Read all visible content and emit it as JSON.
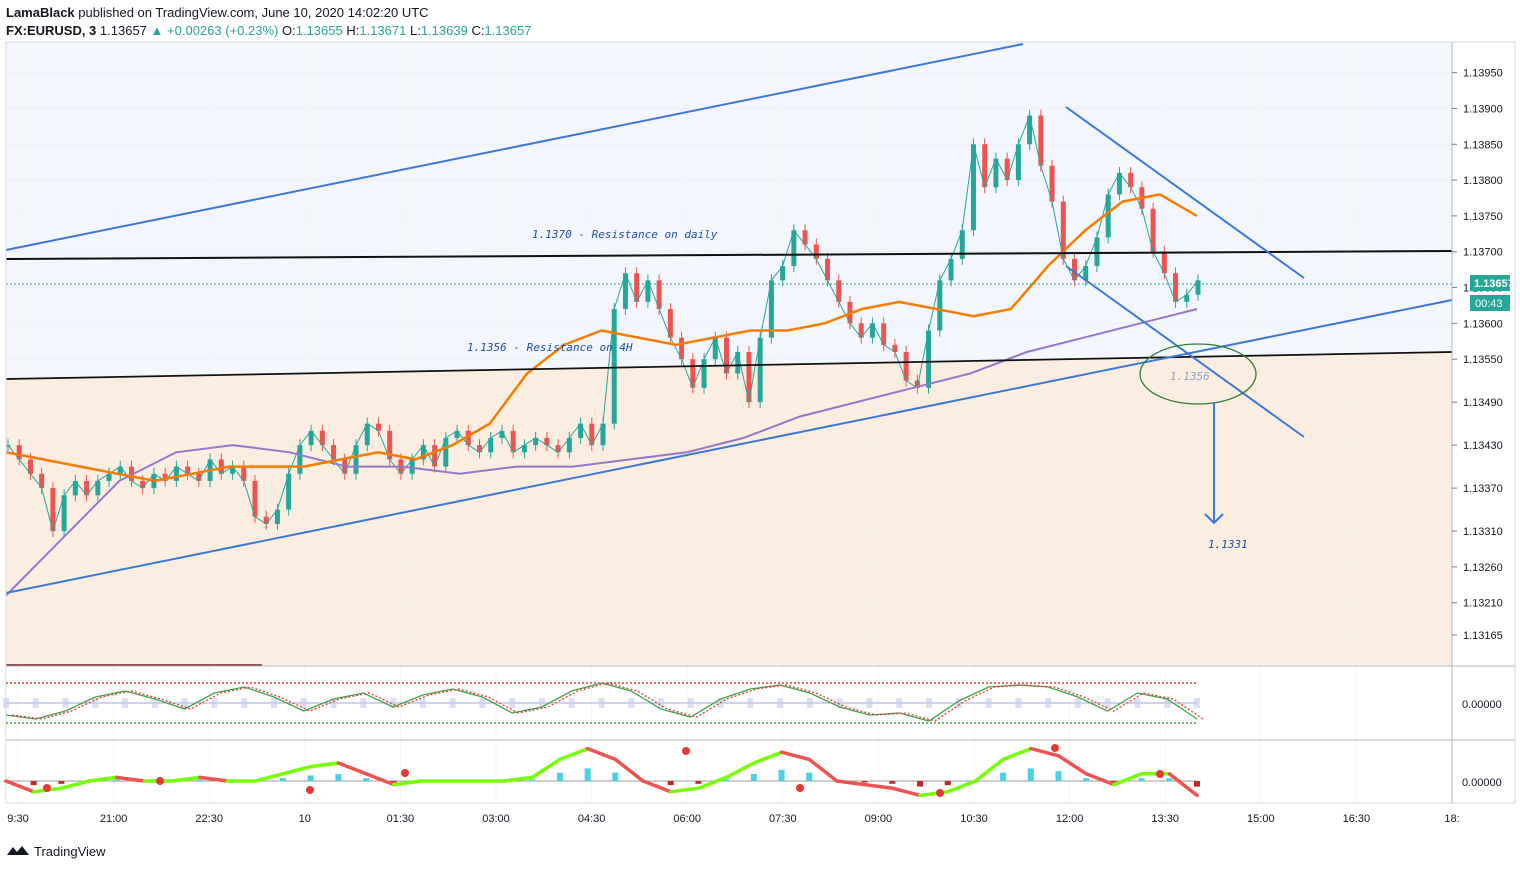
{
  "header": {
    "author": "LamaBlack",
    "published": "published on TradingView.com, June 10, 2020 14:02:20 UTC",
    "symbol": "FX:EURUSD, 3",
    "last": "1.13657",
    "change_arrow": "▲",
    "change": "+0.00263 (+0.23%)",
    "o_label": "O:",
    "o": "1.13655",
    "h_label": "H:",
    "h": "1.13671",
    "l_label": "L:",
    "l": "1.13639",
    "c_label": "C:",
    "c": "1.13657"
  },
  "footer": {
    "brand": "TradingView"
  },
  "colors": {
    "candle_up": "#26a69a",
    "candle_down": "#ef5350",
    "trend_blue": "#3a78d6",
    "resistance_black": "#111111",
    "ma_orange": "#f57c00",
    "ma_purple": "#9575cd",
    "zone_fill": "#fbeee0",
    "upper_fill": "#f3f7fd"
  },
  "chart_data": [
    {
      "type": "candlestick",
      "title": "",
      "ylim": [
        1.1313,
        1.1399
      ],
      "y_ticks": [
        "1.13950",
        "1.13900",
        "1.13850",
        "1.13800",
        "1.13750",
        "1.13700",
        "1.13650",
        "1.13600",
        "1.13550",
        "1.13490",
        "1.13430",
        "1.13370",
        "1.13310",
        "1.13260",
        "1.13210",
        "1.13165"
      ],
      "x_ticks": [
        "9:30",
        "21:00",
        "22:30",
        "10",
        "01:30",
        "03:00",
        "04:30",
        "06:00",
        "07:30",
        "09:00",
        "10:30",
        "12:00",
        "13:30",
        "15:00",
        "16:30",
        "18:"
      ],
      "last_price_label": "1.13657",
      "countdown_label": "00:43",
      "annotations": {
        "resistance_daily": "1.1370  -  Resistance on daily",
        "resistance_4h": "1.1356  -  Resistance on 4H",
        "circle_label": "1.1356",
        "target_label": "1.1331"
      },
      "series": [
        {
          "name": "",
          "kind": "close_path",
          "values": [
            1.1343,
            1.1341,
            1.1339,
            1.1337,
            1.1331,
            1.1336,
            1.1338,
            1.1336,
            1.1338,
            1.1339,
            1.134,
            1.1338,
            1.1337,
            1.1339,
            1.1338,
            1.134,
            1.1339,
            1.1338,
            1.1341,
            1.1339,
            1.134,
            1.1338,
            1.1333,
            1.1332,
            1.1334,
            1.1339,
            1.1343,
            1.1345,
            1.1343,
            1.1341,
            1.1339,
            1.1343,
            1.1346,
            1.1345,
            1.1341,
            1.1339,
            1.1341,
            1.1343,
            1.134,
            1.1344,
            1.1345,
            1.1343,
            1.1342,
            1.1344,
            1.1345,
            1.1342,
            1.1343,
            1.1344,
            1.1343,
            1.1342,
            1.1344,
            1.1346,
            1.1343,
            1.1346,
            1.1362,
            1.1367,
            1.1363,
            1.1366,
            1.1362,
            1.1358,
            1.1355,
            1.1351,
            1.1355,
            1.1358,
            1.1353,
            1.1356,
            1.1349,
            1.1358,
            1.1366,
            1.1368,
            1.1373,
            1.1371,
            1.1369,
            1.1366,
            1.1363,
            1.136,
            1.1358,
            1.136,
            1.1357,
            1.1356,
            1.1352,
            1.1351,
            1.1359,
            1.1366,
            1.1369,
            1.1373,
            1.1385,
            1.1379,
            1.1383,
            1.138,
            1.1385,
            1.1389,
            1.1382,
            1.1377,
            1.1369,
            1.1366,
            1.1368,
            1.1372,
            1.1378,
            1.1381,
            1.1379,
            1.1376,
            1.137,
            1.1367,
            1.1363,
            1.1364,
            1.1366
          ]
        },
        {
          "name": "",
          "kind": "ma_orange",
          "values": [
            1.1342,
            1.1341,
            1.134,
            1.1339,
            1.1338,
            1.1339,
            1.134,
            1.134,
            1.134,
            1.1341,
            1.1342,
            1.1341,
            1.1343,
            1.1346,
            1.1353,
            1.1357,
            1.1359,
            1.1358,
            1.1357,
            1.1358,
            1.1359,
            1.1359,
            1.136,
            1.1362,
            1.1363,
            1.1362,
            1.1361,
            1.1362,
            1.1368,
            1.1373,
            1.1377,
            1.1378,
            1.1375
          ]
        },
        {
          "name": "",
          "kind": "ma_purple",
          "values": [
            1.1322,
            1.133,
            1.1338,
            1.1342,
            1.1343,
            1.1342,
            1.134,
            1.134,
            1.1339,
            1.134,
            1.134,
            1.1341,
            1.1342,
            1.1344,
            1.1347,
            1.1349,
            1.1351,
            1.1353,
            1.1356,
            1.1358,
            1.136,
            1.1362
          ]
        }
      ]
    },
    {
      "type": "line",
      "title": "",
      "y_ticks": [
        "0.00000"
      ],
      "series": [
        {
          "name": "",
          "values": [
            -0.6,
            -0.8,
            -0.4,
            0.3,
            0.6,
            0.2,
            -0.3,
            0.5,
            0.8,
            0.3,
            -0.4,
            0.2,
            0.5,
            -0.2,
            0.4,
            0.7,
            0.3,
            -0.5,
            -0.2,
            0.6,
            1.0,
            0.6,
            -0.3,
            -0.7,
            0.2,
            0.7,
            0.9,
            0.5,
            -0.2,
            -0.6,
            -0.5,
            -0.9,
            0.1,
            0.8,
            0.9,
            0.8,
            0.3,
            -0.4,
            0.5,
            0.2,
            -0.8
          ]
        }
      ]
    },
    {
      "type": "line",
      "title": "",
      "y_ticks": [
        "0.00000"
      ],
      "series": [
        {
          "name": "",
          "values": [
            0.0,
            -0.3,
            -0.2,
            0.0,
            0.1,
            0.0,
            0.0,
            0.1,
            0.0,
            0.0,
            0.2,
            0.4,
            0.5,
            0.2,
            -0.1,
            0.0,
            0.0,
            0.0,
            0.0,
            0.1,
            0.6,
            0.9,
            0.6,
            0.0,
            -0.3,
            -0.2,
            0.1,
            0.5,
            0.8,
            0.6,
            0.0,
            -0.1,
            -0.2,
            -0.4,
            -0.3,
            0.0,
            0.6,
            0.9,
            0.7,
            0.2,
            -0.1,
            0.2,
            0.2,
            -0.4
          ]
        }
      ]
    }
  ]
}
